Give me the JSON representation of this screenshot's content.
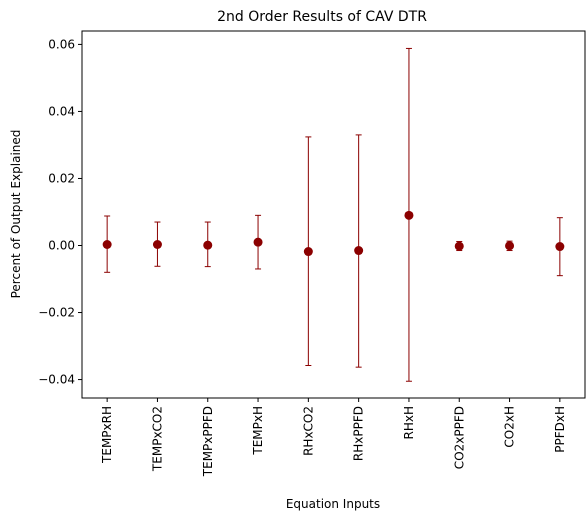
{
  "chart_data": {
    "type": "scatter",
    "title": "2nd Order Results of CAV DTR",
    "xlabel": "Equation Inputs",
    "ylabel": "Percent of Output Explained",
    "categories": [
      "TEMPxRH",
      "TEMPxCO2",
      "TEMPxPPFD",
      "TEMPxH",
      "RHxCO2",
      "RHxPPFD",
      "RHxH",
      "CO2xPPFD",
      "CO2xH",
      "PPFDxH"
    ],
    "values": [
      0.0003,
      0.0003,
      0.0001,
      0.001,
      -0.0018,
      -0.0015,
      0.009,
      -0.0002,
      -0.0001,
      -0.0003
    ],
    "error_lower": [
      -0.008,
      -0.0062,
      -0.0063,
      -0.007,
      -0.0358,
      -0.0363,
      -0.0405,
      -0.0015,
      -0.0015,
      -0.009
    ],
    "error_upper": [
      0.0088,
      0.007,
      0.007,
      0.009,
      0.0324,
      0.033,
      0.0588,
      0.0012,
      0.0013,
      0.0083
    ],
    "ylim": [
      -0.0455,
      0.064
    ],
    "yticks": [
      -0.04,
      -0.02,
      0.0,
      0.02,
      0.04,
      0.06
    ],
    "ytick_labels": [
      "−0.04",
      "−0.02",
      "0.00",
      "0.02",
      "0.04",
      "0.06"
    ],
    "grid": false,
    "colors": {
      "marker": "#8b0000",
      "errorbar": "#8b0000"
    }
  }
}
